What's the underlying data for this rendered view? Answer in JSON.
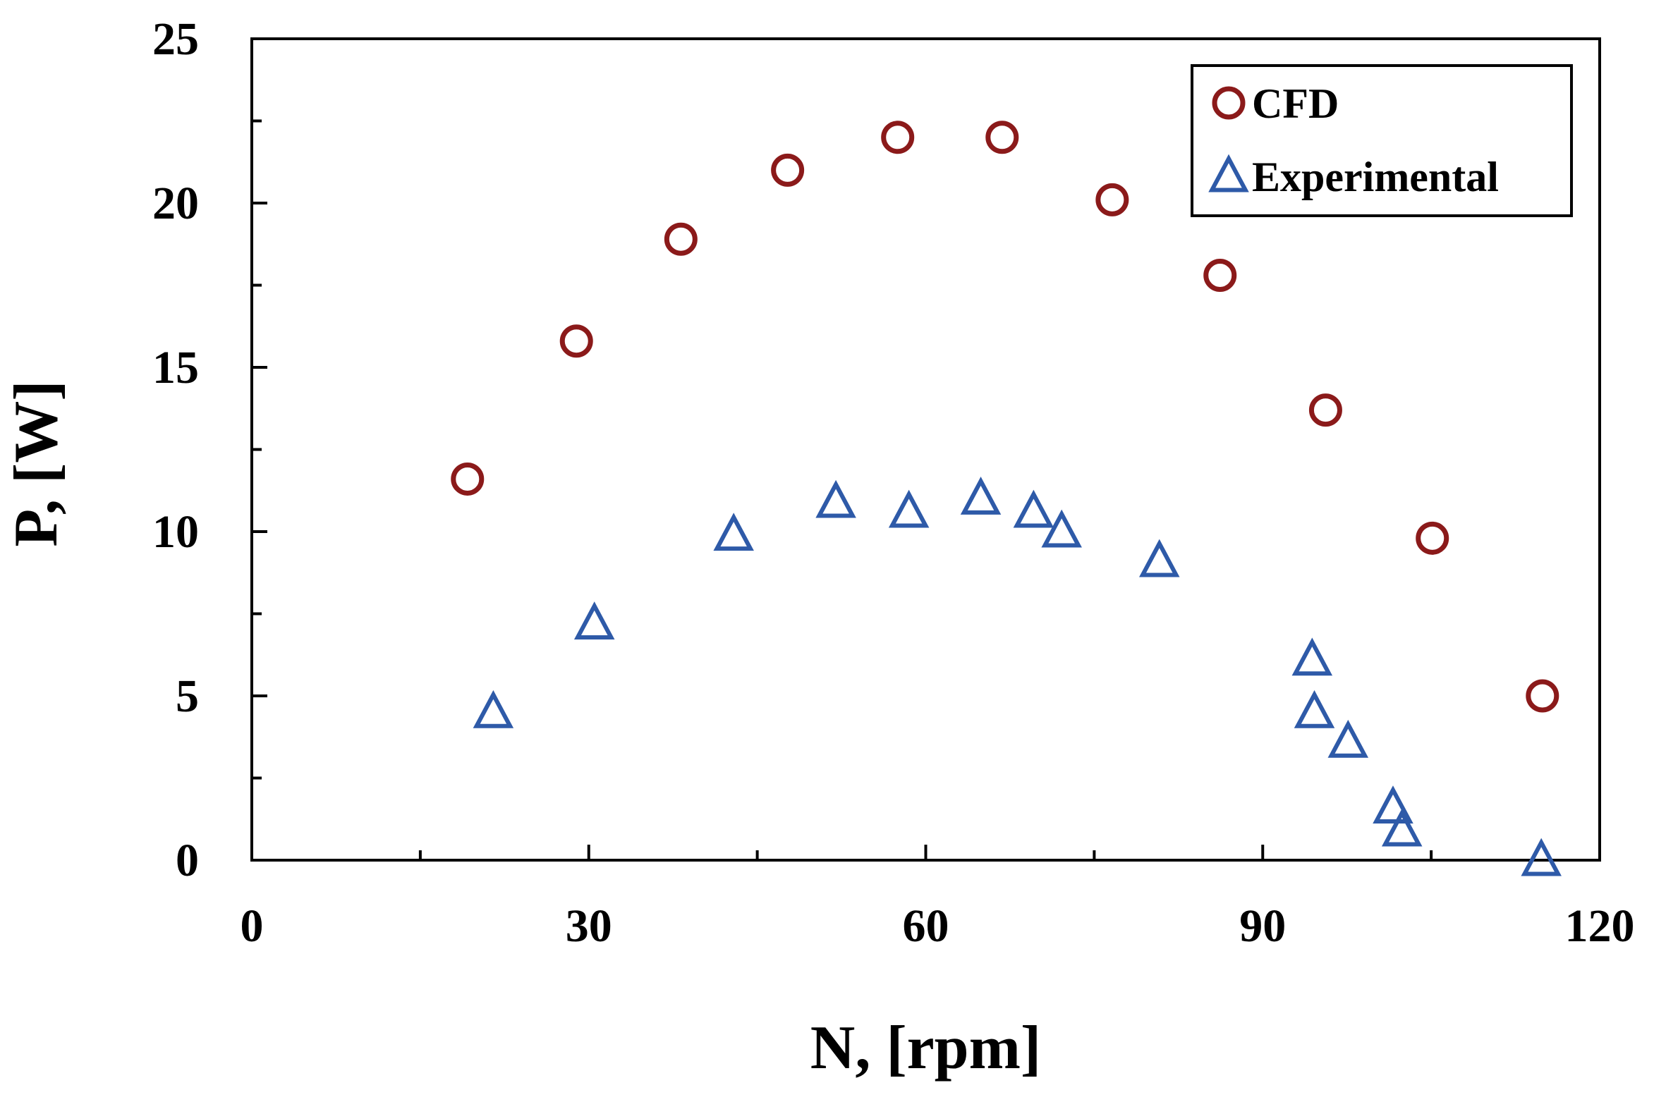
{
  "chart_data": {
    "type": "scatter",
    "xlabel": "N, [rpm]",
    "ylabel": "P, [W]",
    "xlim": [
      0,
      120
    ],
    "ylim": [
      0,
      25
    ],
    "x_ticks": [
      0,
      30,
      60,
      90,
      120
    ],
    "y_ticks": [
      0,
      5,
      10,
      15,
      20,
      25
    ],
    "grid": false,
    "legend_position": "top-right",
    "series": [
      {
        "name": "CFD",
        "marker": "circle",
        "color": "#8b1a1a",
        "x": [
          19.2,
          28.9,
          38.2,
          47.7,
          57.5,
          66.8,
          76.6,
          86.2,
          95.6,
          105.1,
          114.9
        ],
        "y": [
          11.6,
          15.8,
          18.9,
          21.0,
          22.0,
          22.0,
          20.1,
          17.8,
          13.7,
          9.8,
          5.0
        ]
      },
      {
        "name": "Experimental",
        "marker": "triangle",
        "color": "#2e5aa8",
        "x": [
          21.5,
          30.5,
          42.9,
          52.0,
          58.5,
          64.9,
          69.6,
          72.1,
          80.8,
          94.4,
          94.6,
          97.6,
          101.6,
          102.4,
          114.8
        ],
        "y": [
          4.5,
          7.2,
          9.9,
          10.9,
          10.6,
          11.0,
          10.6,
          10.0,
          9.1,
          6.1,
          4.5,
          3.6,
          1.6,
          0.9,
          0.0
        ]
      }
    ]
  }
}
